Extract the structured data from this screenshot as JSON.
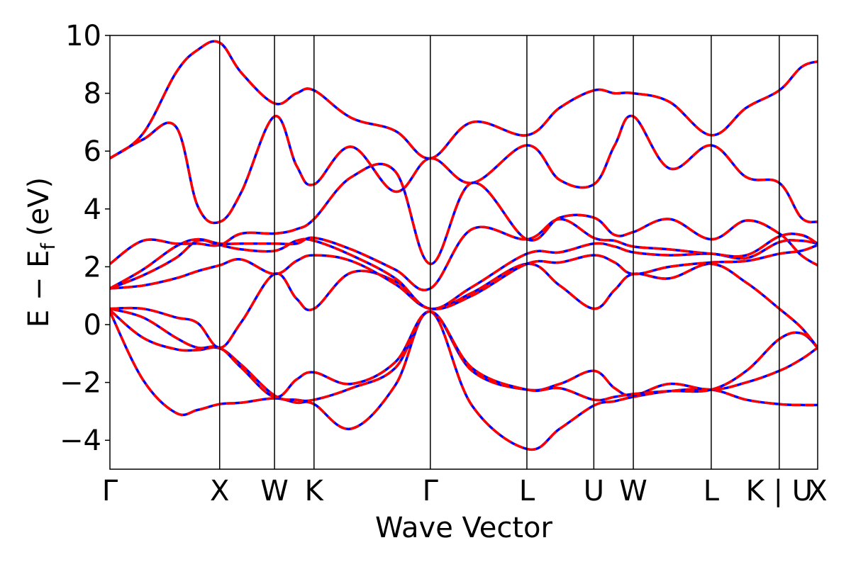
{
  "chart_data": {
    "type": "line",
    "title": "",
    "xlabel": "Wave Vector",
    "ylabel": "E − E",
    "ylabel_sub": "f",
    "ylabel_units": "(eV)",
    "ylim": [
      -5,
      10
    ],
    "yticks": [
      {
        "value": -4,
        "label": "−4"
      },
      {
        "value": -2,
        "label": "−2"
      },
      {
        "value": 0,
        "label": "0"
      },
      {
        "value": 2,
        "label": "2"
      },
      {
        "value": 4,
        "label": "4"
      },
      {
        "value": 6,
        "label": "6"
      },
      {
        "value": 8,
        "label": "8"
      },
      {
        "value": 10,
        "label": "10"
      }
    ],
    "xlim": [
      0,
      6.45
    ],
    "kpoints": [
      {
        "label": "Γ",
        "x": 0
      },
      {
        "label": "X",
        "x": 1.0
      },
      {
        "label": "W",
        "x": 1.5
      },
      {
        "label": "K",
        "x": 1.86
      },
      {
        "label": "Γ",
        "x": 2.92
      },
      {
        "label": "L",
        "x": 3.8
      },
      {
        "label": "U",
        "x": 4.41
      },
      {
        "label": "W",
        "x": 4.77
      },
      {
        "label": "L",
        "x": 5.48
      },
      {
        "label": "K | U",
        "x": 6.1
      },
      {
        "label": "X",
        "x": 6.45
      }
    ],
    "grid": false,
    "legend": "none",
    "colors": {
      "series_a": "#0000ff",
      "series_b": "#ff0000"
    },
    "series_style": {
      "series_a": "solid",
      "series_b": "dashed"
    },
    "bands": [
      {
        "x": [
          0,
          0.3,
          0.6,
          0.8,
          1.0,
          1.2,
          1.5,
          1.7,
          1.86,
          2.2,
          2.6,
          2.92,
          3.3,
          3.8,
          4.1,
          4.41,
          4.6,
          4.77,
          5.1,
          5.48,
          5.8,
          6.1,
          6.3,
          6.45
        ],
        "y": [
          0.45,
          -1.9,
          -3.05,
          -2.95,
          -2.75,
          -2.7,
          -2.55,
          -2.7,
          -2.75,
          -3.6,
          -2.1,
          0.45,
          -2.8,
          -4.3,
          -3.6,
          -2.8,
          -2.65,
          -2.5,
          -2.3,
          -2.25,
          -2.6,
          -2.75,
          -2.78,
          -2.78
        ]
      },
      {
        "x": [
          0,
          0.3,
          0.6,
          0.8,
          1.0,
          1.2,
          1.5,
          1.7,
          1.86,
          2.2,
          2.6,
          2.92,
          3.3,
          3.8,
          4.1,
          4.41,
          4.6,
          4.77,
          5.1,
          5.48,
          5.8,
          6.1,
          6.3,
          6.45
        ],
        "y": [
          0.5,
          -0.45,
          -0.85,
          -0.88,
          -0.82,
          -1.4,
          -2.45,
          -2.6,
          -2.6,
          -2.2,
          -1.5,
          0.45,
          -1.6,
          -2.25,
          -2.05,
          -1.6,
          -2.2,
          -2.45,
          -2.05,
          -2.25,
          -2.0,
          -1.6,
          -1.2,
          -0.8
        ]
      },
      {
        "x": [
          0,
          0.3,
          0.6,
          0.8,
          1.0,
          1.2,
          1.5,
          1.7,
          1.86,
          2.2,
          2.6,
          2.92,
          3.3,
          3.8,
          4.1,
          4.41,
          4.6,
          4.77,
          5.1,
          5.48,
          5.8,
          6.1,
          6.3,
          6.45
        ],
        "y": [
          0.55,
          0.25,
          -0.45,
          -0.8,
          -0.8,
          -1.5,
          -2.5,
          -1.9,
          -1.65,
          -2.05,
          -1.3,
          0.45,
          -1.5,
          -2.25,
          -2.2,
          -2.6,
          -2.5,
          -2.4,
          -2.3,
          -2.25,
          -1.6,
          -0.5,
          -0.3,
          -0.8
        ]
      },
      {
        "x": [
          0,
          0.3,
          0.6,
          0.8,
          1.0,
          1.2,
          1.5,
          1.7,
          1.86,
          2.2,
          2.6,
          2.92,
          3.3,
          3.8,
          4.1,
          4.41,
          4.6,
          4.77,
          5.1,
          5.48,
          5.8,
          6.1,
          6.3,
          6.45
        ],
        "y": [
          0.55,
          0.55,
          0.25,
          0.05,
          -0.8,
          0.1,
          1.75,
          0.9,
          0.55,
          1.8,
          1.5,
          0.55,
          1.1,
          2.1,
          1.35,
          0.55,
          1.2,
          1.75,
          1.6,
          2.1,
          1.45,
          0.55,
          -0.1,
          -0.8
        ]
      },
      {
        "x": [
          0,
          0.3,
          0.6,
          0.8,
          1.0,
          1.2,
          1.5,
          1.7,
          1.86,
          2.2,
          2.6,
          2.92,
          3.3,
          3.8,
          4.1,
          4.41,
          4.6,
          4.77,
          5.1,
          5.48,
          5.8,
          6.1,
          6.3,
          6.45
        ],
        "y": [
          1.25,
          1.35,
          1.6,
          1.85,
          2.05,
          2.25,
          1.75,
          2.2,
          2.4,
          2.2,
          1.4,
          0.55,
          1.0,
          2.1,
          2.15,
          2.4,
          2.15,
          1.75,
          2.0,
          2.15,
          2.2,
          2.45,
          2.55,
          2.75
        ]
      },
      {
        "x": [
          0,
          0.3,
          0.6,
          0.8,
          1.0,
          1.2,
          1.5,
          1.7,
          1.86,
          2.2,
          2.6,
          2.92,
          3.3,
          3.8,
          4.1,
          4.41,
          4.6,
          4.77,
          5.1,
          5.48,
          5.8,
          6.1,
          6.3,
          6.45
        ],
        "y": [
          1.25,
          1.7,
          2.3,
          2.9,
          2.75,
          2.6,
          2.55,
          2.9,
          2.9,
          2.4,
          1.6,
          0.55,
          1.3,
          2.45,
          2.5,
          2.8,
          2.7,
          2.5,
          2.4,
          2.45,
          2.3,
          2.85,
          2.9,
          2.8
        ]
      },
      {
        "x": [
          0,
          0.3,
          0.6,
          0.8,
          1.0,
          1.2,
          1.5,
          1.7,
          1.86,
          2.2,
          2.6,
          2.92,
          3.3,
          3.8,
          4.1,
          4.41,
          4.6,
          4.77,
          5.1,
          5.48,
          5.8,
          6.1,
          6.3,
          6.45
        ],
        "y": [
          1.25,
          1.9,
          2.7,
          2.95,
          2.8,
          2.8,
          2.8,
          2.8,
          3.0,
          2.6,
          1.9,
          1.25,
          3.3,
          2.95,
          3.65,
          3.0,
          2.9,
          2.7,
          2.6,
          2.45,
          2.4,
          3.05,
          3.1,
          2.8
        ]
      },
      {
        "x": [
          0,
          0.3,
          0.6,
          0.8,
          1.0,
          1.2,
          1.5,
          1.7,
          1.86,
          2.2,
          2.6,
          2.92,
          3.3,
          3.8,
          4.1,
          4.41,
          4.6,
          4.77,
          5.1,
          5.48,
          5.8,
          6.1,
          6.3,
          6.45
        ],
        "y": [
          2.1,
          2.9,
          2.8,
          2.8,
          2.75,
          3.15,
          3.15,
          3.3,
          3.65,
          5.1,
          5.3,
          2.1,
          4.9,
          2.95,
          3.7,
          3.7,
          3.1,
          3.2,
          3.65,
          2.95,
          3.6,
          3.15,
          2.4,
          2.05
        ]
      },
      {
        "x": [
          0,
          0.3,
          0.6,
          0.8,
          1.0,
          1.2,
          1.5,
          1.7,
          1.86,
          2.2,
          2.6,
          2.92,
          3.3,
          3.8,
          4.1,
          4.41,
          4.6,
          4.77,
          5.1,
          5.48,
          5.8,
          6.1,
          6.3,
          6.45
        ],
        "y": [
          5.75,
          6.4,
          6.85,
          4.1,
          3.55,
          4.6,
          7.2,
          5.5,
          4.85,
          6.15,
          4.6,
          5.75,
          4.9,
          6.2,
          5.0,
          4.85,
          6.2,
          7.2,
          5.4,
          6.2,
          5.1,
          4.9,
          3.7,
          3.55
        ]
      },
      {
        "x": [
          0,
          0.3,
          0.6,
          0.8,
          1.0,
          1.2,
          1.5,
          1.7,
          1.86,
          2.2,
          2.6,
          2.92,
          3.3,
          3.8,
          4.1,
          4.41,
          4.6,
          4.77,
          5.1,
          5.48,
          5.8,
          6.1,
          6.3,
          6.45
        ],
        "y": [
          5.75,
          6.6,
          8.7,
          9.5,
          9.75,
          8.7,
          7.65,
          8.0,
          8.1,
          7.15,
          6.7,
          5.75,
          7.0,
          6.55,
          7.5,
          8.1,
          8.0,
          8.0,
          7.7,
          6.55,
          7.5,
          8.1,
          8.9,
          9.1
        ]
      }
    ]
  }
}
